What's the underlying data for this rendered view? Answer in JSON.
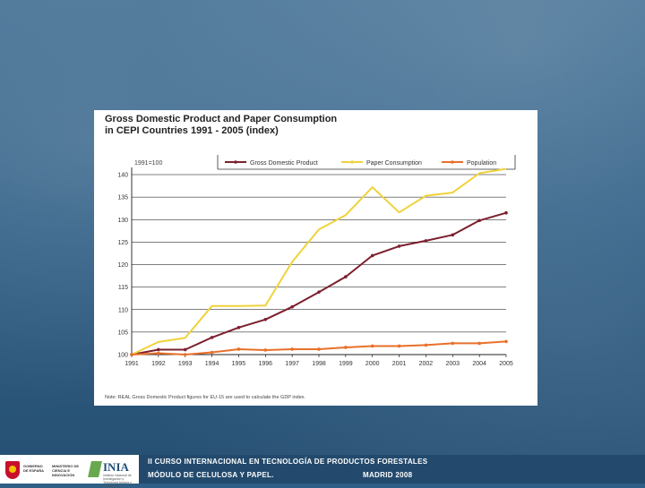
{
  "slide": {
    "footer_line1": "II CURSO INTERNACIONAL EN TECNOLOGÍA DE PRODUCTOS FORESTALES",
    "footer_line2": "MÓDULO DE CELULOSA Y PAPEL.",
    "footer_location": "MADRID 2008",
    "logo_gov_line1": "GOBIERNO DE ESPAÑA",
    "logo_gov_line2": "MINISTERIO DE CIENCIA E INNOVACIÓN",
    "logo_inia_word": "INIA",
    "logo_inia_sub": "Instituto Nacional de Investigación y Tecnología Agraria y Alimentaria"
  },
  "chart_data": {
    "type": "line",
    "title_line1": "Gross Domestic Product and Paper Consumption",
    "title_line2": "in CEPI Countries 1991 - 2005 (index)",
    "ylabel": "1991=100",
    "categories": [
      "1991",
      "1992",
      "1993",
      "1994",
      "1995",
      "1996",
      "1997",
      "1998",
      "1999",
      "2000",
      "2001",
      "2002",
      "2003",
      "2004",
      "2005"
    ],
    "ylim": [
      100,
      140
    ],
    "yticks": [
      100,
      105,
      110,
      115,
      120,
      125,
      130,
      135,
      140
    ],
    "series": [
      {
        "name": "Gross Domestic Product",
        "color": "#7b1f2e",
        "values": [
          100,
          101.1,
          101.1,
          103.8,
          106.0,
          107.8,
          110.6,
          113.9,
          117.3,
          122.0,
          124.1,
          125.3,
          126.6,
          129.8,
          131.5
        ]
      },
      {
        "name": "Paper Consumption",
        "color": "#f0d23a",
        "values": [
          100,
          102.8,
          103.7,
          110.8,
          110.8,
          110.9,
          120.6,
          127.8,
          131.0,
          137.2,
          131.6,
          135.3,
          136.0,
          140.3,
          141.3
        ]
      },
      {
        "name": "Population",
        "color": "#e8702a",
        "values": [
          100,
          100.3,
          100.0,
          100.5,
          101.2,
          101.0,
          101.2,
          101.2,
          101.6,
          101.9,
          101.9,
          102.1,
          102.5,
          102.5,
          102.9
        ]
      }
    ],
    "note": "Note: REAL Gross Domestic Product figures for EU-15 are used to calculate the GDP index."
  }
}
